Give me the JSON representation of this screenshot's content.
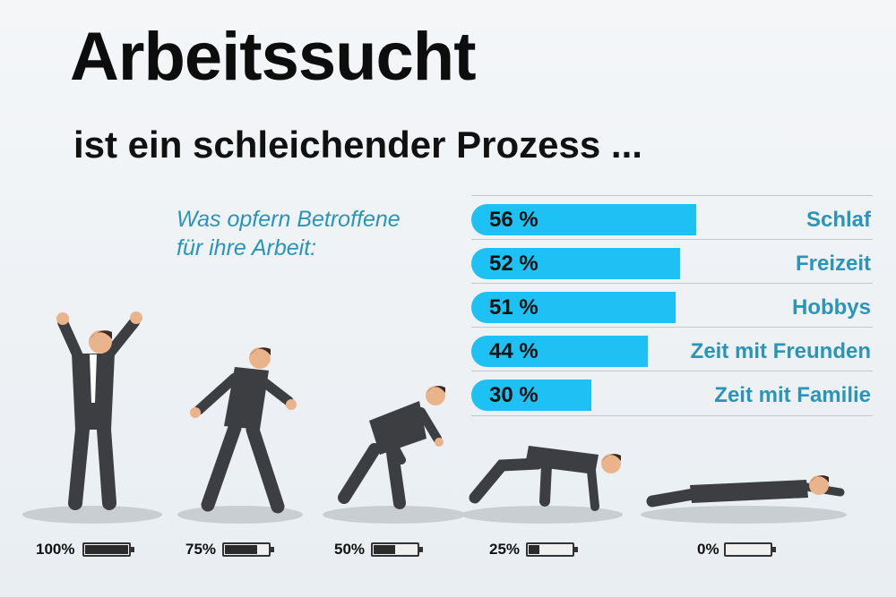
{
  "title": "Arbeitssucht",
  "subtitle": "ist ein schleichender Prozess ...",
  "question_lines": [
    "Was opfern Betroffene",
    "für ihre Arbeit:"
  ],
  "colors": {
    "bar": "#1ec1f4",
    "accent_text": "#2a95b8",
    "suit": "#3c3e42"
  },
  "chart_data": {
    "type": "bar",
    "categories": [
      "Schlaf",
      "Freizeit",
      "Hobbys",
      "Zeit mit Freunden",
      "Zeit mit Familie"
    ],
    "values": [
      56,
      52,
      51,
      44,
      30
    ],
    "value_labels": [
      "56 %",
      "52 %",
      "51 %",
      "44 %",
      "30 %"
    ],
    "title": "",
    "xlabel": "",
    "ylabel": "",
    "xlim": [
      0,
      100
    ],
    "grid": false
  },
  "energy_stages": [
    {
      "label": "100%",
      "level": 1.0,
      "pose": "cheering"
    },
    {
      "label": "75%",
      "level": 0.75,
      "pose": "walking"
    },
    {
      "label": "50%",
      "level": 0.5,
      "pose": "hunched"
    },
    {
      "label": "25%",
      "level": 0.25,
      "pose": "crawling"
    },
    {
      "label": "0%",
      "level": 0.0,
      "pose": "lying"
    }
  ]
}
